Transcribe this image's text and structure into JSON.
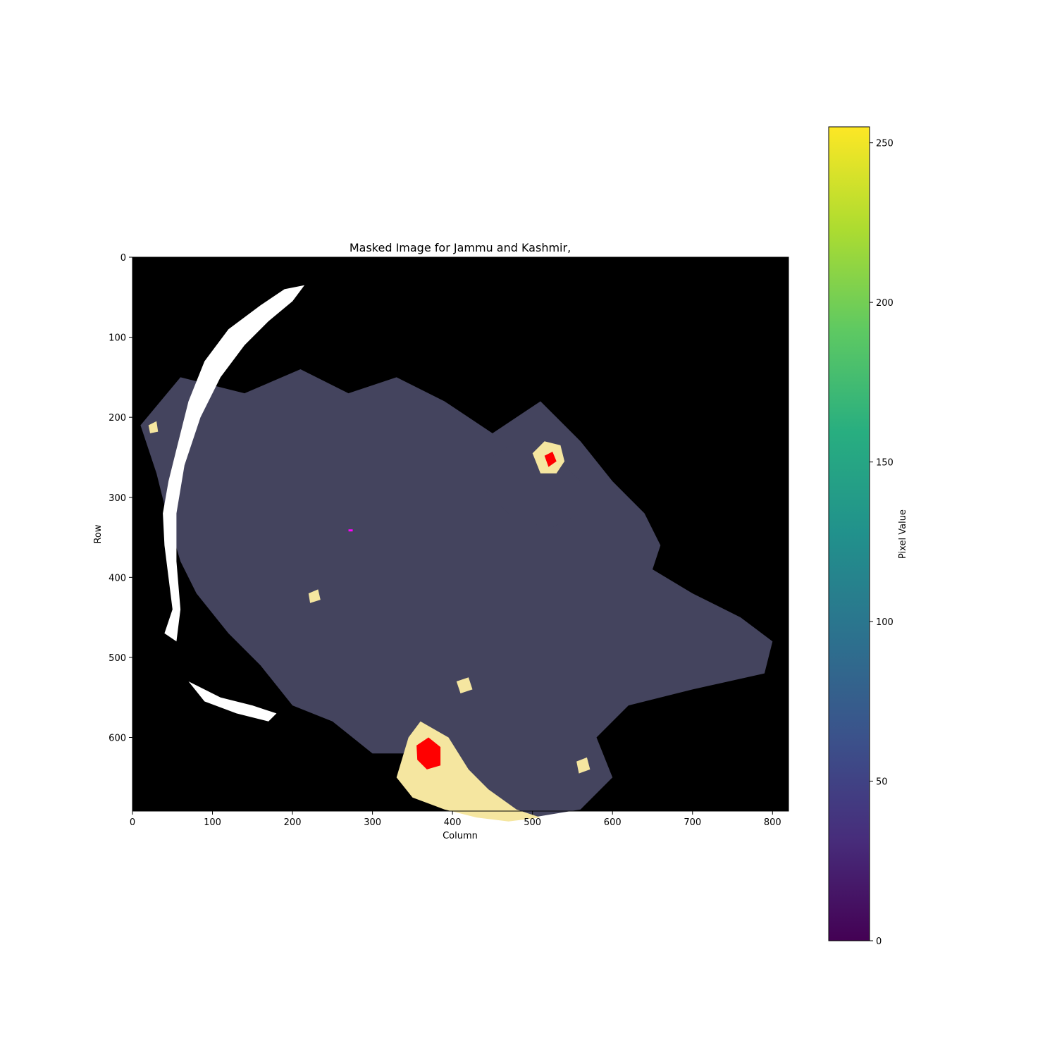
{
  "chart_data": {
    "type": "heatmap",
    "title": "Masked Image for Jammu and Kashmir,",
    "xlabel": "Column",
    "ylabel": "Row",
    "xlim": [
      0,
      820
    ],
    "ylim": [
      692,
      0
    ],
    "xticks": [
      0,
      100,
      200,
      300,
      400,
      500,
      600,
      700,
      800
    ],
    "yticks": [
      0,
      100,
      200,
      300,
      400,
      500,
      600
    ],
    "grid": false,
    "colormap": "viridis",
    "colorbar": {
      "label": "Pixel Value",
      "range": [
        0,
        255
      ],
      "ticks": [
        0,
        50,
        100,
        150,
        200,
        250
      ]
    },
    "classes": [
      {
        "color": "#000000"
      },
      {
        "color": "#44445e"
      },
      {
        "color": "#f5e6a0"
      },
      {
        "color": "#ff0000"
      },
      {
        "color": "#ffffff"
      }
    ],
    "regions": {
      "rural": [
        [
          [
            10,
            210
          ],
          [
            60,
            150
          ],
          [
            140,
            170
          ],
          [
            210,
            140
          ],
          [
            270,
            170
          ],
          [
            330,
            150
          ],
          [
            390,
            180
          ],
          [
            450,
            220
          ],
          [
            510,
            180
          ],
          [
            560,
            230
          ],
          [
            600,
            280
          ],
          [
            640,
            320
          ],
          [
            660,
            360
          ],
          [
            650,
            390
          ],
          [
            700,
            420
          ],
          [
            760,
            450
          ],
          [
            800,
            480
          ],
          [
            790,
            520
          ],
          [
            700,
            540
          ],
          [
            620,
            560
          ],
          [
            580,
            600
          ],
          [
            600,
            650
          ],
          [
            560,
            690
          ],
          [
            500,
            700
          ],
          [
            440,
            690
          ],
          [
            400,
            660
          ],
          [
            360,
            620
          ],
          [
            300,
            620
          ],
          [
            250,
            580
          ],
          [
            200,
            560
          ],
          [
            160,
            510
          ],
          [
            120,
            470
          ],
          [
            80,
            420
          ],
          [
            60,
            380
          ],
          [
            45,
            330
          ],
          [
            30,
            270
          ]
        ],
        [
          [
            440,
            255
          ],
          [
            480,
            230
          ],
          [
            520,
            240
          ],
          [
            560,
            280
          ],
          [
            560,
            320
          ],
          [
            520,
            340
          ],
          [
            470,
            320
          ],
          [
            440,
            290
          ]
        ]
      ],
      "urban": [
        [
          [
            330,
            650
          ],
          [
            345,
            600
          ],
          [
            360,
            580
          ],
          [
            395,
            600
          ],
          [
            420,
            640
          ],
          [
            445,
            665
          ],
          [
            480,
            690
          ],
          [
            510,
            700
          ],
          [
            470,
            705
          ],
          [
            430,
            700
          ],
          [
            390,
            690
          ],
          [
            350,
            675
          ]
        ],
        [
          [
            500,
            245
          ],
          [
            515,
            230
          ],
          [
            535,
            235
          ],
          [
            540,
            255
          ],
          [
            530,
            270
          ],
          [
            510,
            270
          ]
        ],
        [
          [
            20,
            210
          ],
          [
            30,
            205
          ],
          [
            32,
            218
          ],
          [
            22,
            220
          ]
        ],
        [
          [
            220,
            420
          ],
          [
            232,
            415
          ],
          [
            235,
            428
          ],
          [
            222,
            432
          ]
        ],
        [
          [
            405,
            530
          ],
          [
            420,
            525
          ],
          [
            425,
            540
          ],
          [
            410,
            545
          ]
        ],
        [
          [
            555,
            630
          ],
          [
            568,
            625
          ],
          [
            572,
            640
          ],
          [
            558,
            645
          ]
        ]
      ],
      "core": [
        [
          [
            355,
            610
          ],
          [
            370,
            600
          ],
          [
            385,
            612
          ],
          [
            385,
            635
          ],
          [
            368,
            640
          ],
          [
            356,
            628
          ]
        ],
        [
          [
            515,
            248
          ],
          [
            525,
            243
          ],
          [
            530,
            255
          ],
          [
            520,
            262
          ]
        ]
      ],
      "white": [
        [
          [
            40,
            470
          ],
          [
            50,
            440
          ],
          [
            45,
            400
          ],
          [
            40,
            360
          ],
          [
            38,
            320
          ],
          [
            45,
            280
          ],
          [
            55,
            240
          ],
          [
            70,
            180
          ],
          [
            90,
            130
          ],
          [
            120,
            90
          ],
          [
            160,
            60
          ],
          [
            190,
            40
          ],
          [
            215,
            35
          ],
          [
            200,
            55
          ],
          [
            170,
            80
          ],
          [
            140,
            110
          ],
          [
            110,
            150
          ],
          [
            85,
            200
          ],
          [
            65,
            260
          ],
          [
            55,
            320
          ],
          [
            55,
            380
          ],
          [
            60,
            440
          ],
          [
            55,
            480
          ]
        ],
        [
          [
            70,
            530
          ],
          [
            110,
            550
          ],
          [
            150,
            560
          ],
          [
            180,
            570
          ],
          [
            170,
            580
          ],
          [
            130,
            570
          ],
          [
            90,
            555
          ]
        ]
      ]
    },
    "accent_color": "#ff00ff"
  }
}
